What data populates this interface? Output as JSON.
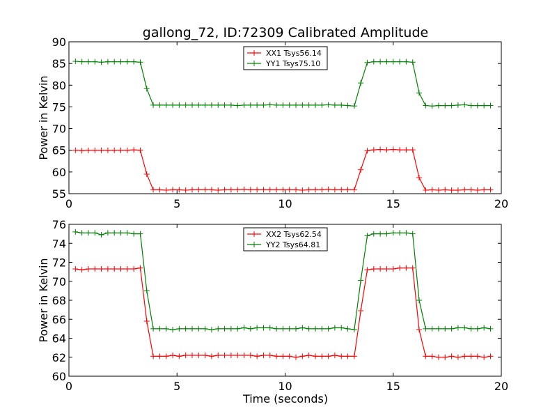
{
  "figure": {
    "title": "gallong_72, ID:72309 Calibrated Amplitude",
    "xlabel": "Time (seconds)"
  },
  "colors": {
    "red": "#ff0000",
    "green": "#008000",
    "axis": "#000000"
  },
  "chart_data": [
    {
      "type": "line",
      "ylabel": "Power in Kelvin",
      "xlim": [
        0,
        20
      ],
      "ylim": [
        55,
        90
      ],
      "xticks": [
        0,
        5,
        10,
        15,
        20
      ],
      "yticks": [
        55,
        60,
        65,
        70,
        75,
        80,
        85,
        90
      ],
      "legend_position": "top-center",
      "x": [
        0.3,
        0.6,
        0.9,
        1.2,
        1.5,
        1.8,
        2.1,
        2.4,
        2.7,
        3.0,
        3.3,
        3.6,
        3.9,
        4.2,
        4.5,
        4.8,
        5.1,
        5.4,
        5.7,
        6.0,
        6.3,
        6.6,
        6.9,
        7.2,
        7.5,
        7.8,
        8.1,
        8.4,
        8.7,
        9.0,
        9.3,
        9.6,
        9.9,
        10.2,
        10.5,
        10.8,
        11.1,
        11.4,
        11.7,
        12.0,
        12.3,
        12.6,
        12.9,
        13.2,
        13.5,
        13.8,
        14.1,
        14.4,
        14.7,
        15.0,
        15.3,
        15.6,
        15.9,
        16.2,
        16.5,
        16.8,
        17.1,
        17.4,
        17.7,
        18.0,
        18.3,
        18.6,
        18.9,
        19.2,
        19.5
      ],
      "series": [
        {
          "name": "XX1 Tsys56.14",
          "color": "#ff0000",
          "values": [
            65.0,
            64.9,
            65.0,
            65.0,
            65.0,
            65.0,
            65.0,
            65.0,
            65.0,
            65.1,
            65.0,
            59.5,
            55.9,
            55.9,
            55.8,
            55.9,
            55.9,
            55.8,
            55.9,
            55.9,
            55.9,
            55.9,
            55.8,
            55.9,
            55.9,
            55.9,
            56.0,
            55.9,
            55.9,
            55.9,
            55.9,
            55.9,
            55.9,
            55.9,
            55.9,
            55.8,
            55.9,
            55.9,
            55.9,
            56.0,
            55.9,
            55.9,
            55.9,
            55.9,
            60.5,
            64.9,
            65.1,
            65.2,
            65.1,
            65.2,
            65.1,
            65.1,
            65.1,
            58.7,
            55.8,
            55.9,
            55.8,
            55.9,
            55.8,
            55.8,
            55.9,
            55.9,
            55.8,
            55.9,
            55.9
          ]
        },
        {
          "name": "YY1 Tsys75.10",
          "color": "#008000",
          "values": [
            85.5,
            85.4,
            85.4,
            85.4,
            85.3,
            85.4,
            85.4,
            85.4,
            85.4,
            85.4,
            85.3,
            79.2,
            75.4,
            75.4,
            75.4,
            75.4,
            75.4,
            75.4,
            75.4,
            75.4,
            75.4,
            75.4,
            75.4,
            75.4,
            75.4,
            75.3,
            75.4,
            75.4,
            75.4,
            75.4,
            75.5,
            75.4,
            75.4,
            75.4,
            75.4,
            75.4,
            75.4,
            75.4,
            75.4,
            75.5,
            75.4,
            75.4,
            75.3,
            75.2,
            80.5,
            85.2,
            85.4,
            85.4,
            85.4,
            85.4,
            85.4,
            85.4,
            85.3,
            78.2,
            75.3,
            75.2,
            75.3,
            75.3,
            75.3,
            75.4,
            75.5,
            75.3,
            75.3,
            75.3,
            75.3
          ]
        }
      ]
    },
    {
      "type": "line",
      "ylabel": "Power in Kelvin",
      "xlabel": "Time (seconds)",
      "xlim": [
        0,
        20
      ],
      "ylim": [
        60,
        76
      ],
      "xticks": [
        0,
        5,
        10,
        15,
        20
      ],
      "yticks": [
        60,
        62,
        64,
        66,
        68,
        70,
        72,
        74,
        76
      ],
      "legend_position": "top-center",
      "x": [
        0.3,
        0.6,
        0.9,
        1.2,
        1.5,
        1.8,
        2.1,
        2.4,
        2.7,
        3.0,
        3.3,
        3.6,
        3.9,
        4.2,
        4.5,
        4.8,
        5.1,
        5.4,
        5.7,
        6.0,
        6.3,
        6.6,
        6.9,
        7.2,
        7.5,
        7.8,
        8.1,
        8.4,
        8.7,
        9.0,
        9.3,
        9.6,
        9.9,
        10.2,
        10.5,
        10.8,
        11.1,
        11.4,
        11.7,
        12.0,
        12.3,
        12.6,
        12.9,
        13.2,
        13.5,
        13.8,
        14.1,
        14.4,
        14.7,
        15.0,
        15.3,
        15.6,
        15.9,
        16.2,
        16.5,
        16.8,
        17.1,
        17.4,
        17.7,
        18.0,
        18.3,
        18.6,
        18.9,
        19.2,
        19.5
      ],
      "series": [
        {
          "name": "XX2 Tsys62.54",
          "color": "#ff0000",
          "values": [
            71.3,
            71.2,
            71.3,
            71.3,
            71.3,
            71.3,
            71.3,
            71.3,
            71.3,
            71.3,
            71.4,
            65.8,
            62.1,
            62.1,
            62.1,
            62.2,
            62.1,
            62.2,
            62.2,
            62.2,
            62.2,
            62.1,
            62.2,
            62.2,
            62.2,
            62.2,
            62.2,
            62.2,
            62.1,
            62.2,
            62.2,
            62.1,
            62.1,
            62.1,
            62.0,
            62.1,
            62.2,
            62.1,
            62.1,
            62.1,
            62.2,
            62.1,
            62.1,
            62.1,
            66.9,
            71.2,
            71.3,
            71.3,
            71.3,
            71.3,
            71.4,
            71.4,
            71.4,
            64.9,
            62.1,
            62.1,
            62.0,
            62.0,
            62.1,
            62.0,
            62.1,
            62.1,
            62.1,
            62.0,
            62.1
          ]
        },
        {
          "name": "YY2 Tsys64.81",
          "color": "#008000",
          "values": [
            75.2,
            75.1,
            75.1,
            75.1,
            74.9,
            75.1,
            75.1,
            75.1,
            75.1,
            75.0,
            75.0,
            69.0,
            65.0,
            65.0,
            65.0,
            64.9,
            65.0,
            65.0,
            65.0,
            65.0,
            65.0,
            64.9,
            65.0,
            65.0,
            65.0,
            65.0,
            65.1,
            65.0,
            65.1,
            65.1,
            65.1,
            65.0,
            65.0,
            65.0,
            65.0,
            65.1,
            65.0,
            65.0,
            65.0,
            65.0,
            65.1,
            65.1,
            65.0,
            64.9,
            70.1,
            74.8,
            75.0,
            75.0,
            75.0,
            75.1,
            75.1,
            75.1,
            75.0,
            68.0,
            65.0,
            65.0,
            65.0,
            65.0,
            65.0,
            65.1,
            65.1,
            65.0,
            65.0,
            65.1,
            65.0
          ]
        }
      ]
    }
  ]
}
